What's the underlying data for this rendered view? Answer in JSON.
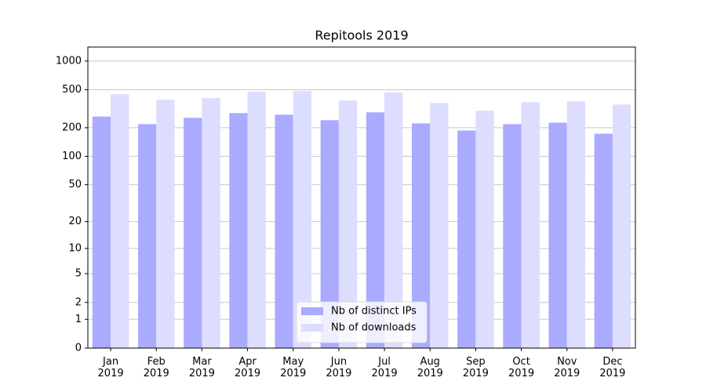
{
  "chart_data": {
    "type": "bar",
    "title": "Repitools 2019",
    "scale": "log1p",
    "categories": [
      "Jan\n2019",
      "Feb\n2019",
      "Mar\n2019",
      "Apr\n2019",
      "May\n2019",
      "Jun\n2019",
      "Jul\n2019",
      "Aug\n2019",
      "Sep\n2019",
      "Oct\n2019",
      "Nov\n2019",
      "Dec\n2019"
    ],
    "series": [
      {
        "name": "Nb of distinct IPs",
        "color": "#aaaaff",
        "values": [
          262,
          218,
          254,
          285,
          274,
          240,
          290,
          222,
          187,
          218,
          226,
          173
        ]
      },
      {
        "name": "Nb of downloads",
        "color": "#ddddff",
        "values": [
          449,
          393,
          409,
          476,
          485,
          386,
          467,
          364,
          301,
          371,
          379,
          350
        ]
      }
    ],
    "ylim": [
      0,
      1400
    ],
    "yticks": [
      0,
      1,
      2,
      5,
      10,
      20,
      50,
      100,
      200,
      500,
      1000
    ],
    "grid": true,
    "legend": "lower center"
  }
}
